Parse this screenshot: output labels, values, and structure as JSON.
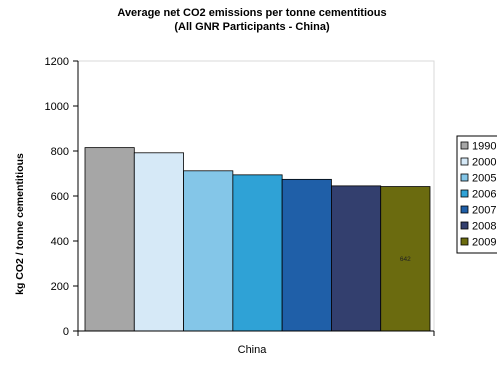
{
  "chart_data": {
    "type": "bar",
    "title": "Average net CO2 emissions per tonne cementitious",
    "subtitle": "(All GNR Participants - China)",
    "xlabel": "China",
    "ylabel": "kg CO2 / tonne cementitious",
    "ylim": [
      0,
      1200
    ],
    "yticks": [
      0,
      200,
      400,
      600,
      800,
      1000,
      1200
    ],
    "grid": false,
    "legend_position": "right",
    "series": [
      {
        "name": "1990",
        "value": 815,
        "color": "#a6a6a6"
      },
      {
        "name": "2000",
        "value": 792,
        "color": "#d6e9f7"
      },
      {
        "name": "2005",
        "value": 712,
        "color": "#84c6e8"
      },
      {
        "name": "2006",
        "value": 694,
        "color": "#2fa2d6"
      },
      {
        "name": "2007",
        "value": 674,
        "color": "#1f5fa8"
      },
      {
        "name": "2008",
        "value": 645,
        "color": "#333f6e"
      },
      {
        "name": "2009",
        "value": 642,
        "color": "#6b6b0f",
        "data_label": "642"
      }
    ]
  }
}
